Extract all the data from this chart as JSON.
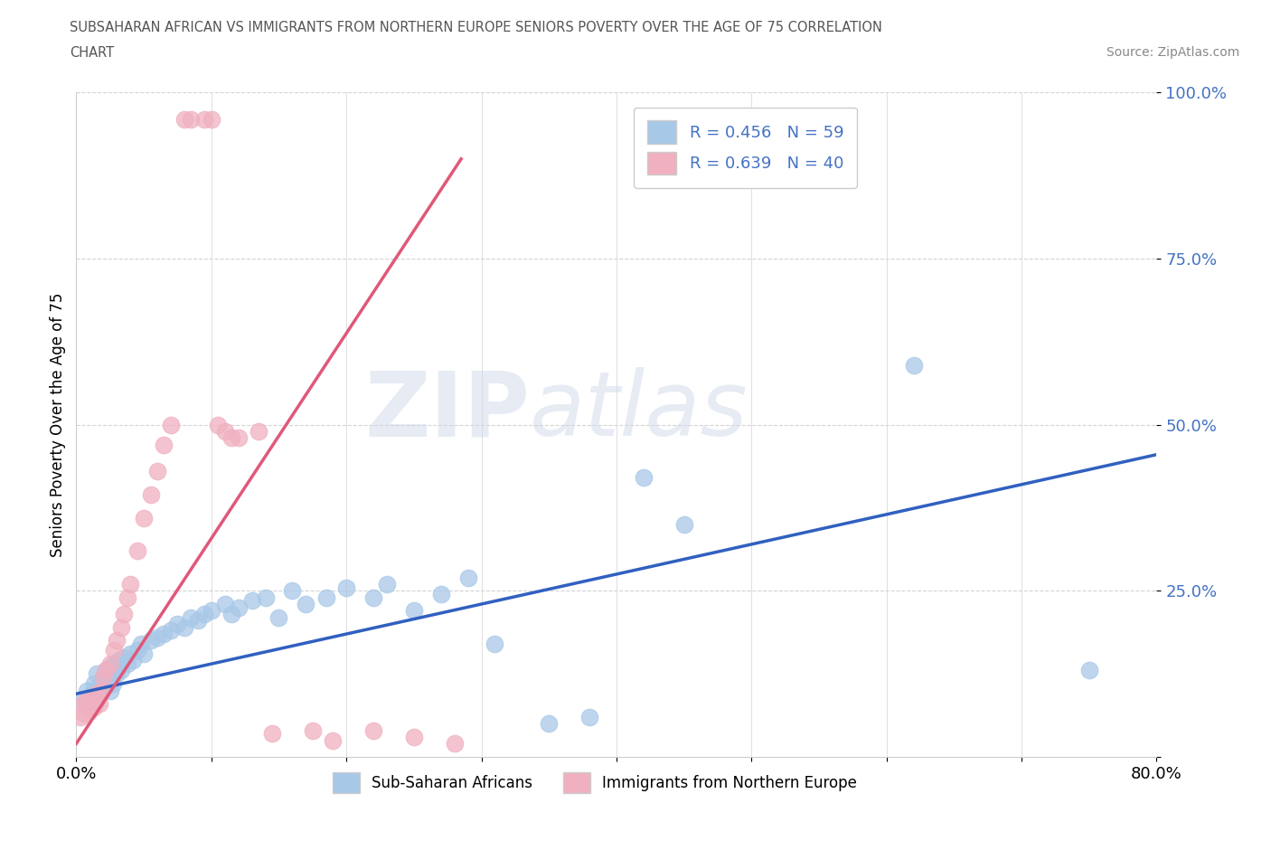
{
  "title_line1": "SUBSAHARAN AFRICAN VS IMMIGRANTS FROM NORTHERN EUROPE SENIORS POVERTY OVER THE AGE OF 75 CORRELATION",
  "title_line2": "CHART",
  "source": "Source: ZipAtlas.com",
  "ylabel": "Seniors Poverty Over the Age of 75",
  "xlim": [
    0.0,
    0.8
  ],
  "ylim": [
    0.0,
    1.0
  ],
  "xtick_vals": [
    0.0,
    0.1,
    0.2,
    0.3,
    0.4,
    0.5,
    0.6,
    0.7,
    0.8
  ],
  "xticklabels": [
    "0.0%",
    "",
    "",
    "",
    "",
    "",
    "",
    "",
    "80.0%"
  ],
  "ytick_vals": [
    0.0,
    0.25,
    0.5,
    0.75,
    1.0
  ],
  "yticklabels": [
    "",
    "25.0%",
    "50.0%",
    "75.0%",
    "100.0%"
  ],
  "blue_color": "#a8c8e8",
  "pink_color": "#f0b0c0",
  "blue_line_color": "#3060c0",
  "pink_line_color": "#e05878",
  "R_blue": 0.456,
  "N_blue": 59,
  "R_pink": 0.639,
  "N_pink": 40,
  "legend_label_blue": "Sub-Saharan Africans",
  "legend_label_pink": "Immigrants from Northern Europe",
  "watermark_zip": "ZIP",
  "watermark_atlas": "atlas",
  "blue_trend_x": [
    0.0,
    0.8
  ],
  "blue_trend_y": [
    0.095,
    0.455
  ],
  "pink_trend_x": [
    0.0,
    0.285
  ],
  "pink_trend_y": [
    0.02,
    0.9
  ],
  "blue_x": [
    0.005,
    0.008,
    0.01,
    0.012,
    0.013,
    0.015,
    0.015,
    0.016,
    0.018,
    0.019,
    0.02,
    0.022,
    0.023,
    0.025,
    0.025,
    0.027,
    0.028,
    0.03,
    0.032,
    0.033,
    0.035,
    0.038,
    0.04,
    0.042,
    0.045,
    0.048,
    0.05,
    0.055,
    0.06,
    0.065,
    0.07,
    0.075,
    0.08,
    0.085,
    0.09,
    0.095,
    0.1,
    0.11,
    0.115,
    0.12,
    0.13,
    0.14,
    0.15,
    0.16,
    0.17,
    0.185,
    0.2,
    0.22,
    0.23,
    0.25,
    0.27,
    0.29,
    0.31,
    0.35,
    0.38,
    0.42,
    0.45,
    0.62,
    0.75
  ],
  "blue_y": [
    0.085,
    0.1,
    0.09,
    0.095,
    0.11,
    0.085,
    0.125,
    0.105,
    0.095,
    0.115,
    0.12,
    0.13,
    0.115,
    0.135,
    0.1,
    0.11,
    0.14,
    0.125,
    0.145,
    0.13,
    0.15,
    0.14,
    0.155,
    0.145,
    0.16,
    0.17,
    0.155,
    0.175,
    0.18,
    0.185,
    0.19,
    0.2,
    0.195,
    0.21,
    0.205,
    0.215,
    0.22,
    0.23,
    0.215,
    0.225,
    0.235,
    0.24,
    0.21,
    0.25,
    0.23,
    0.24,
    0.255,
    0.24,
    0.26,
    0.22,
    0.245,
    0.27,
    0.17,
    0.05,
    0.06,
    0.42,
    0.35,
    0.59,
    0.13
  ],
  "pink_x": [
    0.003,
    0.005,
    0.006,
    0.008,
    0.01,
    0.012,
    0.013,
    0.015,
    0.017,
    0.019,
    0.02,
    0.022,
    0.025,
    0.028,
    0.03,
    0.033,
    0.035,
    0.038,
    0.04,
    0.045,
    0.05,
    0.055,
    0.06,
    0.065,
    0.07,
    0.08,
    0.085,
    0.095,
    0.1,
    0.105,
    0.11,
    0.115,
    0.12,
    0.135,
    0.145,
    0.175,
    0.19,
    0.22,
    0.25,
    0.28
  ],
  "pink_y": [
    0.06,
    0.08,
    0.065,
    0.085,
    0.07,
    0.09,
    0.075,
    0.095,
    0.08,
    0.1,
    0.12,
    0.13,
    0.14,
    0.16,
    0.175,
    0.195,
    0.215,
    0.24,
    0.26,
    0.31,
    0.36,
    0.395,
    0.43,
    0.47,
    0.5,
    0.96,
    0.96,
    0.96,
    0.96,
    0.5,
    0.49,
    0.48,
    0.48,
    0.49,
    0.035,
    0.04,
    0.025,
    0.04,
    0.03,
    0.02
  ]
}
